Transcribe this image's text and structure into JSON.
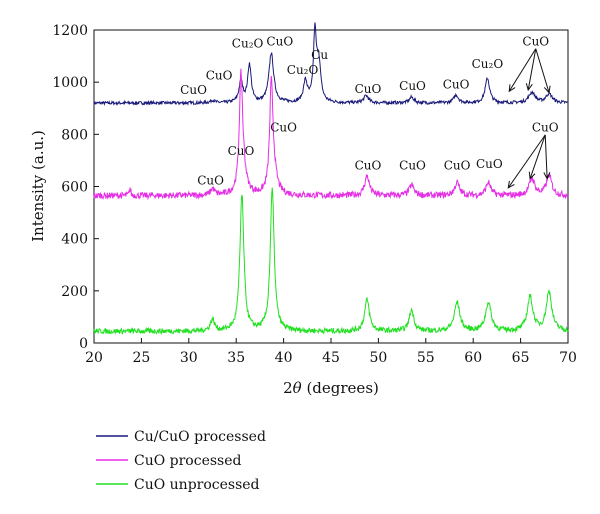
{
  "chart_data": {
    "type": "line",
    "title": "",
    "xlabel_prefix": "2",
    "xlabel_theta": "θ",
    "xlabel_suffix": " (degrees)",
    "ylabel": "Intensity (a.u.)",
    "xlim": [
      20,
      70
    ],
    "ylim": [
      0,
      1200
    ],
    "x_ticks": [
      20,
      25,
      30,
      35,
      40,
      45,
      50,
      55,
      60,
      65,
      70
    ],
    "y_ticks": [
      0,
      200,
      400,
      600,
      800,
      1000,
      1200
    ],
    "grid": false,
    "legend_position": "bottom-left, below plot",
    "series": [
      {
        "name": "Cu/CuO processed",
        "color": "#1a1a7a",
        "baseline": 920,
        "noise": 6,
        "peaks": [
          {
            "x": 32.5,
            "h": 10,
            "w": 0.25
          },
          {
            "x": 35.5,
            "h": 80,
            "w": 0.25
          },
          {
            "x": 36.4,
            "h": 145,
            "w": 0.22
          },
          {
            "x": 38.7,
            "h": 190,
            "w": 0.3
          },
          {
            "x": 42.3,
            "h": 80,
            "w": 0.25
          },
          {
            "x": 43.3,
            "h": 255,
            "w": 0.18
          },
          {
            "x": 43.7,
            "h": 155,
            "w": 0.25
          },
          {
            "x": 48.7,
            "h": 28,
            "w": 0.3
          },
          {
            "x": 53.5,
            "h": 22,
            "w": 0.3
          },
          {
            "x": 58.2,
            "h": 30,
            "w": 0.3
          },
          {
            "x": 61.5,
            "h": 95,
            "w": 0.28
          },
          {
            "x": 66.2,
            "h": 40,
            "w": 0.4
          },
          {
            "x": 68.0,
            "h": 35,
            "w": 0.4
          }
        ]
      },
      {
        "name": "CuO processed",
        "color": "#e52ee5",
        "baseline": 565,
        "noise": 12,
        "peaks": [
          {
            "x": 23.8,
            "h": 30,
            "w": 0.08
          },
          {
            "x": 32.5,
            "h": 25,
            "w": 0.25
          },
          {
            "x": 35.5,
            "h": 400,
            "w": 0.2
          },
          {
            "x": 35.7,
            "h": 90,
            "w": 0.4
          },
          {
            "x": 38.7,
            "h": 375,
            "w": 0.2
          },
          {
            "x": 38.9,
            "h": 90,
            "w": 0.4
          },
          {
            "x": 48.8,
            "h": 75,
            "w": 0.3
          },
          {
            "x": 53.5,
            "h": 40,
            "w": 0.3
          },
          {
            "x": 58.3,
            "h": 50,
            "w": 0.3
          },
          {
            "x": 61.6,
            "h": 50,
            "w": 0.3
          },
          {
            "x": 66.2,
            "h": 65,
            "w": 0.35
          },
          {
            "x": 68.0,
            "h": 75,
            "w": 0.35
          }
        ]
      },
      {
        "name": "CuO unprocessed",
        "color": "#22e022",
        "baseline": 45,
        "noise": 10,
        "peaks": [
          {
            "x": 32.5,
            "h": 45,
            "w": 0.25
          },
          {
            "x": 35.6,
            "h": 520,
            "w": 0.25
          },
          {
            "x": 38.8,
            "h": 540,
            "w": 0.25
          },
          {
            "x": 48.8,
            "h": 120,
            "w": 0.3
          },
          {
            "x": 53.5,
            "h": 80,
            "w": 0.3
          },
          {
            "x": 58.3,
            "h": 110,
            "w": 0.35
          },
          {
            "x": 61.6,
            "h": 110,
            "w": 0.35
          },
          {
            "x": 66.0,
            "h": 130,
            "w": 0.35
          },
          {
            "x": 68.0,
            "h": 150,
            "w": 0.35
          }
        ]
      }
    ],
    "annotations": {
      "cu_cuo": [
        {
          "text": "CuO",
          "x": 30.5,
          "y": 955
        },
        {
          "text": "CuO",
          "x": 33.2,
          "y": 1010
        },
        {
          "text": "Cu₂O",
          "x": 36.2,
          "y": 1132
        },
        {
          "text": "CuO",
          "x": 39.6,
          "y": 1140
        },
        {
          "text": "Cu₂O",
          "x": 42.0,
          "y": 1032
        },
        {
          "text": "Cu",
          "x": 43.8,
          "y": 1088
        },
        {
          "text": "CuO",
          "x": 48.9,
          "y": 958
        },
        {
          "text": "CuO",
          "x": 53.6,
          "y": 970
        },
        {
          "text": "CuO",
          "x": 58.2,
          "y": 976
        },
        {
          "text": "Cu₂O",
          "x": 61.5,
          "y": 1055
        },
        {
          "text": "CuO",
          "x": 66.6,
          "y": 1140
        }
      ],
      "cuo_processed": [
        {
          "text": "CuO",
          "x": 32.3,
          "y": 607
        },
        {
          "text": "CuO",
          "x": 35.5,
          "y": 720
        },
        {
          "text": "CuO",
          "x": 40.0,
          "y": 810
        },
        {
          "text": "CuO",
          "x": 48.9,
          "y": 665
        },
        {
          "text": "CuO",
          "x": 53.6,
          "y": 665
        },
        {
          "text": "CuO",
          "x": 58.3,
          "y": 665
        },
        {
          "text": "CuO",
          "x": 61.7,
          "y": 670
        },
        {
          "text": "CuO",
          "x": 67.6,
          "y": 810
        }
      ]
    }
  }
}
